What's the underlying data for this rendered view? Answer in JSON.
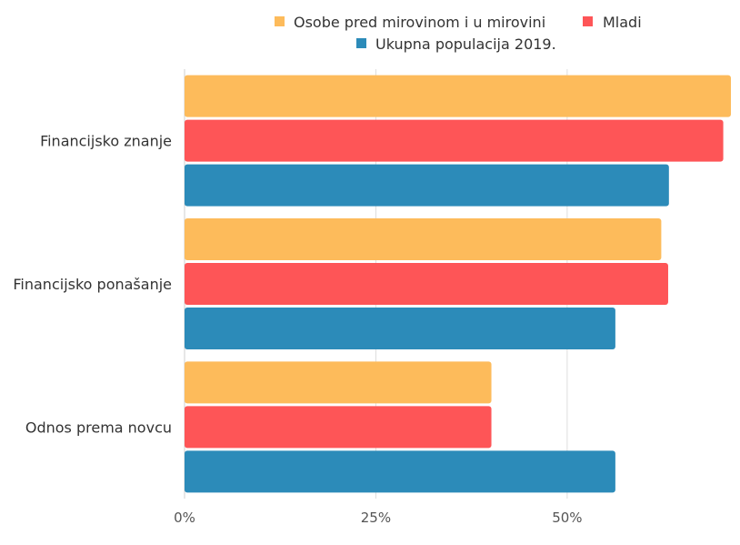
{
  "chart_data": {
    "type": "bar",
    "orientation": "horizontal",
    "categories": [
      "Financijsko znanje",
      "Financijsko ponašanje",
      "Odnos prema novcu"
    ],
    "series": [
      {
        "name": "Osobe pred mirovinom i u mirovini",
        "color": "#FDBB5B",
        "values": [
          71.4,
          62.3,
          40.1
        ]
      },
      {
        "name": "Mladi",
        "color": "#FE5557",
        "values": [
          70.4,
          63.2,
          40.1
        ]
      },
      {
        "name": "Ukupna populacija 2019.",
        "color": "#2C8BB9",
        "values": [
          63.3,
          56.3,
          56.3
        ]
      }
    ],
    "x_ticks": [
      "0%",
      "25%",
      "50%"
    ],
    "xlim": [
      0,
      71.4
    ],
    "grid": true,
    "legend_position": "top"
  }
}
